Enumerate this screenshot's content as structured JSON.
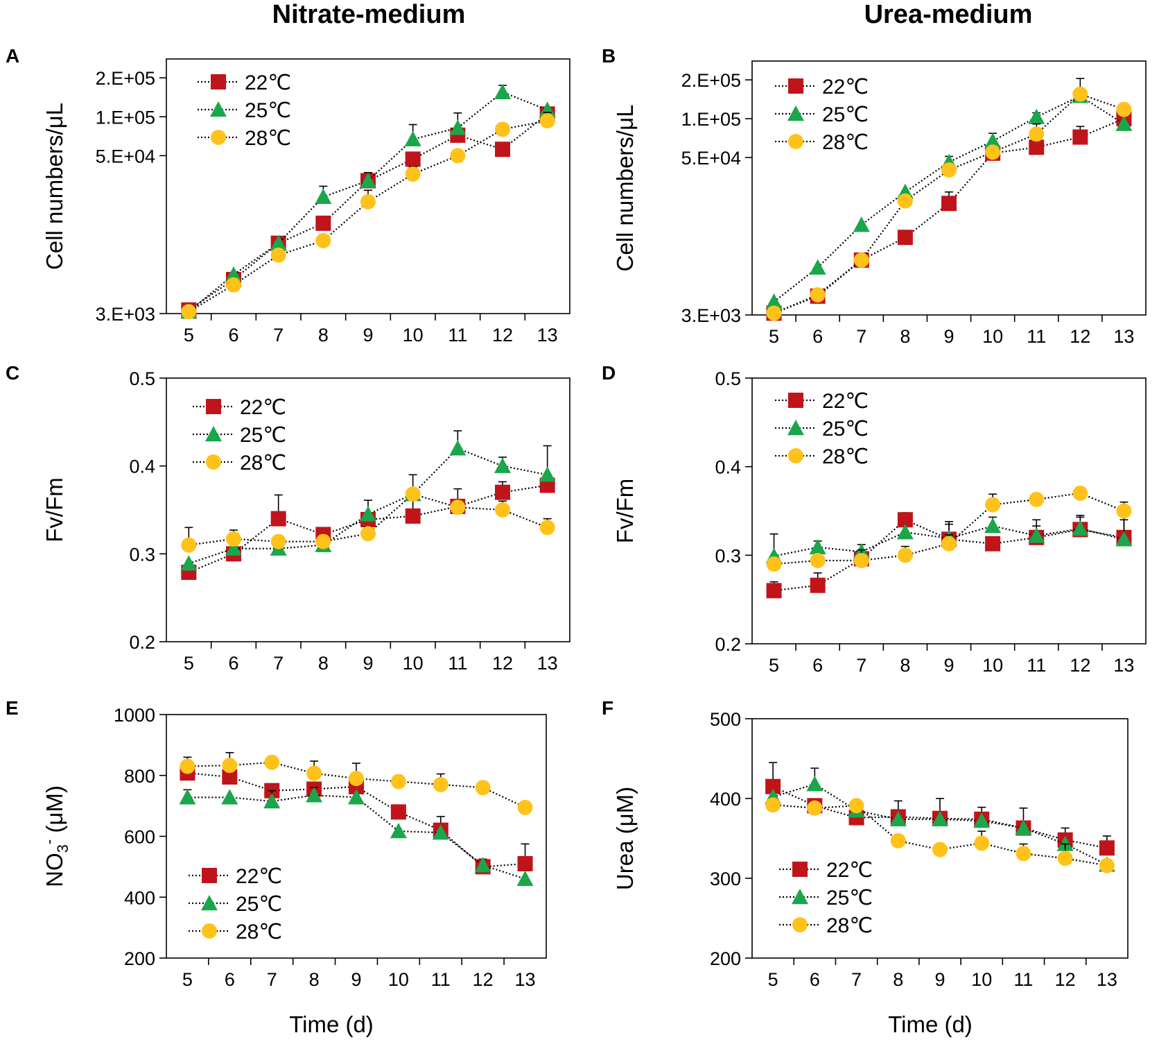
{
  "figure": {
    "title_left": "Nitrate-medium",
    "title_right": "Urea-medium",
    "x_axis_label": "Time (d)"
  },
  "series_style": {
    "22": {
      "name": "22℃",
      "marker": "square",
      "color": "#c0141b"
    },
    "25": {
      "name": "25℃",
      "marker": "triangle",
      "color": "#1aa64b"
    },
    "28": {
      "name": "28℃",
      "marker": "circle",
      "color": "#ffc21a"
    }
  },
  "chart_data": [
    {
      "panel": "A",
      "type": "line",
      "scale": "log",
      "title": "Nitrate-medium",
      "ylabel": "Cell numbers/μL",
      "xlabel": "",
      "x": [
        5,
        6,
        7,
        8,
        9,
        10,
        11,
        12,
        13
      ],
      "y_ticks": [
        3000,
        50000,
        100000,
        200000
      ],
      "y_tick_labels": [
        "3.E+03",
        "5.E+04",
        "1.E+05",
        "2.E+05"
      ],
      "ylim": [
        3000,
        280000
      ],
      "legend": [
        "22℃",
        "25℃",
        "28℃"
      ],
      "legend_position": "top-left",
      "series": [
        {
          "name": "22℃",
          "values": [
            3200,
            5500,
            10500,
            15000,
            32000,
            47000,
            72000,
            56000,
            105000
          ],
          "err": [
            0,
            0,
            0,
            0,
            5000,
            6000,
            8000,
            0,
            0
          ]
        },
        {
          "name": "25℃",
          "values": [
            3100,
            6000,
            10500,
            24000,
            32000,
            67000,
            82000,
            155000,
            113000
          ],
          "err": [
            0,
            0,
            0,
            5000,
            0,
            20000,
            25000,
            20000,
            0
          ]
        },
        {
          "name": "28℃",
          "values": [
            3100,
            5000,
            8500,
            11000,
            22000,
            36000,
            50000,
            80000,
            93000
          ],
          "err": [
            0,
            0,
            0,
            0,
            5000,
            5000,
            5000,
            6000,
            15000
          ]
        }
      ]
    },
    {
      "panel": "B",
      "type": "line",
      "scale": "log",
      "title": "Urea-medium",
      "ylabel": "Cell numbers/μL",
      "xlabel": "",
      "x": [
        5,
        6,
        7,
        8,
        9,
        10,
        11,
        12,
        13
      ],
      "y_ticks": [
        3000,
        50000,
        100000,
        200000
      ],
      "y_tick_labels": [
        "3.E+03",
        "5.E+04",
        "1.E+05",
        "2.E+05"
      ],
      "ylim": [
        3000,
        280000
      ],
      "legend": [
        "22℃",
        "25℃",
        "28℃"
      ],
      "legend_position": "top-left",
      "series": [
        {
          "name": "22℃",
          "values": [
            3100,
            4200,
            8000,
            12000,
            22000,
            54000,
            60000,
            72000,
            100000
          ],
          "err": [
            0,
            0,
            0,
            0,
            5000,
            0,
            15000,
            15000,
            0
          ]
        },
        {
          "name": "25℃",
          "values": [
            3800,
            7000,
            15000,
            27000,
            46000,
            67000,
            103000,
            150000,
            91000
          ],
          "err": [
            0,
            0,
            0,
            0,
            5000,
            10000,
            8000,
            0,
            18000
          ]
        },
        {
          "name": "28℃",
          "values": [
            3100,
            4300,
            8000,
            23000,
            40000,
            55000,
            76000,
            155000,
            118000
          ],
          "err": [
            0,
            0,
            0,
            0,
            0,
            0,
            15000,
            50000,
            8000
          ]
        }
      ]
    },
    {
      "panel": "C",
      "type": "line",
      "scale": "linear",
      "ylabel": "Fv/Fm",
      "xlabel": "",
      "x": [
        5,
        6,
        7,
        8,
        9,
        10,
        11,
        12,
        13
      ],
      "y_ticks": [
        0.2,
        0.3,
        0.4,
        0.5
      ],
      "y_tick_labels": [
        "0.2",
        "0.3",
        "0.4",
        "0.5"
      ],
      "ylim": [
        0.2,
        0.5
      ],
      "legend": [
        "22℃",
        "25℃",
        "28℃"
      ],
      "legend_position": "top-left",
      "series": [
        {
          "name": "22℃",
          "values": [
            0.279,
            0.3,
            0.34,
            0.322,
            0.339,
            0.343,
            0.354,
            0.37,
            0.378
          ],
          "err": [
            0.008,
            0,
            0.027,
            0,
            0,
            0.025,
            0.02,
            0.012,
            0.012
          ]
        },
        {
          "name": "25℃",
          "values": [
            0.289,
            0.306,
            0.306,
            0.31,
            0.345,
            0.368,
            0.42,
            0.4,
            0.39
          ],
          "err": [
            0,
            0,
            0.01,
            0.01,
            0.016,
            0.022,
            0.02,
            0.01,
            0.033
          ]
        },
        {
          "name": "28℃",
          "values": [
            0.31,
            0.317,
            0.314,
            0.314,
            0.323,
            0.368,
            0.353,
            0.35,
            0.33
          ],
          "err": [
            0.02,
            0.01,
            0,
            0,
            0.008,
            0,
            0,
            0.01,
            0.01
          ]
        }
      ]
    },
    {
      "panel": "D",
      "type": "line",
      "scale": "linear",
      "ylabel": "Fv/Fm",
      "xlabel": "",
      "x": [
        5,
        6,
        7,
        8,
        9,
        10,
        11,
        12,
        13
      ],
      "y_ticks": [
        0.2,
        0.3,
        0.4,
        0.5
      ],
      "y_tick_labels": [
        "0.2",
        "0.3",
        "0.4",
        "0.5"
      ],
      "ylim": [
        0.2,
        0.5
      ],
      "legend": [
        "22℃",
        "25℃",
        "28℃"
      ],
      "legend_position": "top-left",
      "series": [
        {
          "name": "22℃",
          "values": [
            0.26,
            0.266,
            0.296,
            0.34,
            0.318,
            0.313,
            0.32,
            0.329,
            0.32
          ],
          "err": [
            0.01,
            0.014,
            0,
            0.008,
            0.02,
            0,
            0.013,
            0.014,
            0.02
          ]
        },
        {
          "name": "25℃",
          "values": [
            0.299,
            0.309,
            0.304,
            0.326,
            0.319,
            0.333,
            0.322,
            0.33,
            0.318
          ],
          "err": [
            0.025,
            0.007,
            0.008,
            0,
            0.016,
            0.01,
            0.018,
            0.015,
            0.03
          ]
        },
        {
          "name": "28℃",
          "values": [
            0.29,
            0.294,
            0.294,
            0.3,
            0.313,
            0.357,
            0.363,
            0.37,
            0.35
          ],
          "err": [
            0,
            0,
            0.012,
            0.01,
            0.01,
            0.012,
            0,
            0,
            0.01
          ]
        }
      ]
    },
    {
      "panel": "E",
      "type": "line",
      "scale": "linear",
      "ylabel": "NO3- (μM)",
      "ylabel_main": "NO",
      "ylabel_sub": "3",
      "ylabel_sup": "-",
      "ylabel_rest": " (μM)",
      "xlabel": "Time (d)",
      "x": [
        5,
        6,
        7,
        8,
        9,
        10,
        11,
        12,
        13
      ],
      "y_ticks": [
        200,
        400,
        600,
        800,
        1000
      ],
      "y_tick_labels": [
        "200",
        "400",
        "600",
        "800",
        "1000"
      ],
      "ylim": [
        200,
        1000
      ],
      "legend": [
        "22℃",
        "25℃",
        "28℃"
      ],
      "legend_position": "bottom-left",
      "series": [
        {
          "name": "22℃",
          "values": [
            808,
            795,
            750,
            755,
            763,
            680,
            620,
            500,
            510
          ],
          "err": [
            0,
            0,
            0,
            0,
            0,
            20,
            45,
            25,
            65
          ]
        },
        {
          "name": "25℃",
          "values": [
            728,
            728,
            715,
            735,
            728,
            617,
            612,
            505,
            460
          ],
          "err": [
            25,
            0,
            35,
            25,
            0,
            0,
            0,
            0,
            0
          ]
        },
        {
          "name": "28℃",
          "values": [
            830,
            833,
            843,
            807,
            790,
            780,
            770,
            760,
            695
          ],
          "err": [
            30,
            42,
            0,
            40,
            50,
            20,
            35,
            20,
            0
          ]
        }
      ]
    },
    {
      "panel": "F",
      "type": "line",
      "scale": "linear",
      "ylabel": "Urea (μM)",
      "xlabel": "Time (d)",
      "x": [
        5,
        6,
        7,
        8,
        9,
        10,
        11,
        12,
        13
      ],
      "y_ticks": [
        200,
        300,
        400,
        500
      ],
      "y_tick_labels": [
        "200",
        "300",
        "400",
        "500"
      ],
      "ylim": [
        200,
        500
      ],
      "legend": [
        "22℃",
        "25℃",
        "28℃"
      ],
      "legend_position": "bottom-left",
      "series": [
        {
          "name": "22℃",
          "values": [
            415,
            391,
            376,
            377,
            375,
            374,
            363,
            348,
            338
          ],
          "err": [
            30,
            0,
            13,
            20,
            25,
            15,
            25,
            15,
            15
          ]
        },
        {
          "name": "25℃",
          "values": [
            402,
            418,
            385,
            374,
            374,
            372,
            363,
            343,
            317
          ],
          "err": [
            0,
            20,
            0,
            0,
            0,
            0,
            0,
            0,
            0
          ]
        },
        {
          "name": "28℃",
          "values": [
            392,
            388,
            391,
            347,
            336,
            344,
            331,
            325,
            316
          ],
          "err": [
            8,
            8,
            0,
            0,
            0,
            15,
            12,
            18,
            0
          ]
        }
      ]
    }
  ]
}
